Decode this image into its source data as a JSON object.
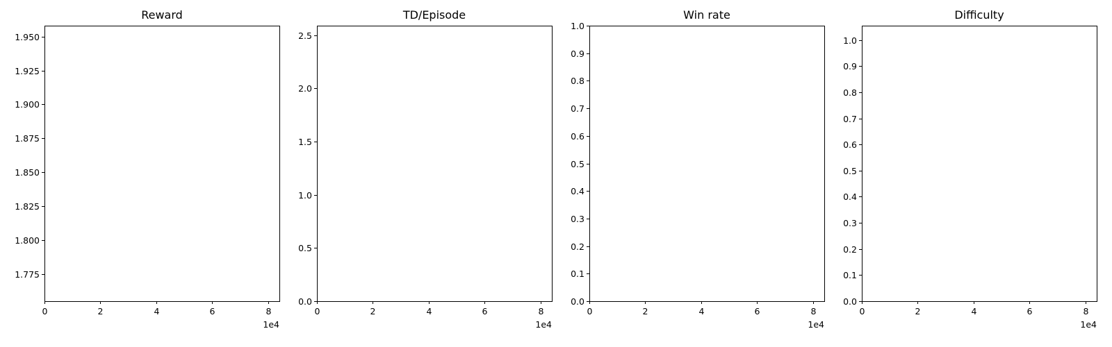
{
  "chart_data": [
    {
      "type": "line",
      "title": "Reward",
      "xlim": [
        0,
        84000
      ],
      "ylim": [
        1.755,
        1.958
      ],
      "x_ticks": [
        0,
        20000,
        40000,
        60000,
        80000
      ],
      "x_tick_labels": [
        "0",
        "2",
        "4",
        "6",
        "8"
      ],
      "x_offset_label": "1e4",
      "y_ticks": [
        1.775,
        1.8,
        1.825,
        1.85,
        1.875,
        1.9,
        1.925,
        1.95
      ],
      "y_tick_labels": [
        "1.775",
        "1.800",
        "1.825",
        "1.850",
        "1.875",
        "1.900",
        "1.925",
        "1.950"
      ],
      "series": [],
      "grid": false
    },
    {
      "type": "line",
      "title": "TD/Episode",
      "xlim": [
        0,
        84000
      ],
      "ylim": [
        0,
        2.59
      ],
      "x_ticks": [
        0,
        20000,
        40000,
        60000,
        80000
      ],
      "x_tick_labels": [
        "0",
        "2",
        "4",
        "6",
        "8"
      ],
      "x_offset_label": "1e4",
      "y_ticks": [
        0,
        0.5,
        1.0,
        1.5,
        2.0,
        2.5
      ],
      "y_tick_labels": [
        "0.0",
        "0.5",
        "1.0",
        "1.5",
        "2.0",
        "2.5"
      ],
      "series": [],
      "grid": false
    },
    {
      "type": "line",
      "title": "Win rate",
      "xlim": [
        0,
        84000
      ],
      "ylim": [
        0,
        1.0
      ],
      "x_ticks": [
        0,
        20000,
        40000,
        60000,
        80000
      ],
      "x_tick_labels": [
        "0",
        "2",
        "4",
        "6",
        "8"
      ],
      "x_offset_label": "1e4",
      "y_ticks": [
        0,
        0.1,
        0.2,
        0.3,
        0.4,
        0.5,
        0.6,
        0.7,
        0.8,
        0.9,
        1.0
      ],
      "y_tick_labels": [
        "0.0",
        "0.1",
        "0.2",
        "0.3",
        "0.4",
        "0.5",
        "0.6",
        "0.7",
        "0.8",
        "0.9",
        "1.0"
      ],
      "series": [],
      "grid": false
    },
    {
      "type": "line",
      "title": "Difficulty",
      "xlim": [
        0,
        84000
      ],
      "ylim": [
        0,
        1.055
      ],
      "x_ticks": [
        0,
        20000,
        40000,
        60000,
        80000
      ],
      "x_tick_labels": [
        "0",
        "2",
        "4",
        "6",
        "8"
      ],
      "x_offset_label": "1e4",
      "y_ticks": [
        0,
        0.1,
        0.2,
        0.3,
        0.4,
        0.5,
        0.6,
        0.7,
        0.8,
        0.9,
        1.0
      ],
      "y_tick_labels": [
        "0.0",
        "0.1",
        "0.2",
        "0.3",
        "0.4",
        "0.5",
        "0.6",
        "0.7",
        "0.8",
        "0.9",
        "1.0"
      ],
      "series": [],
      "grid": false
    }
  ]
}
